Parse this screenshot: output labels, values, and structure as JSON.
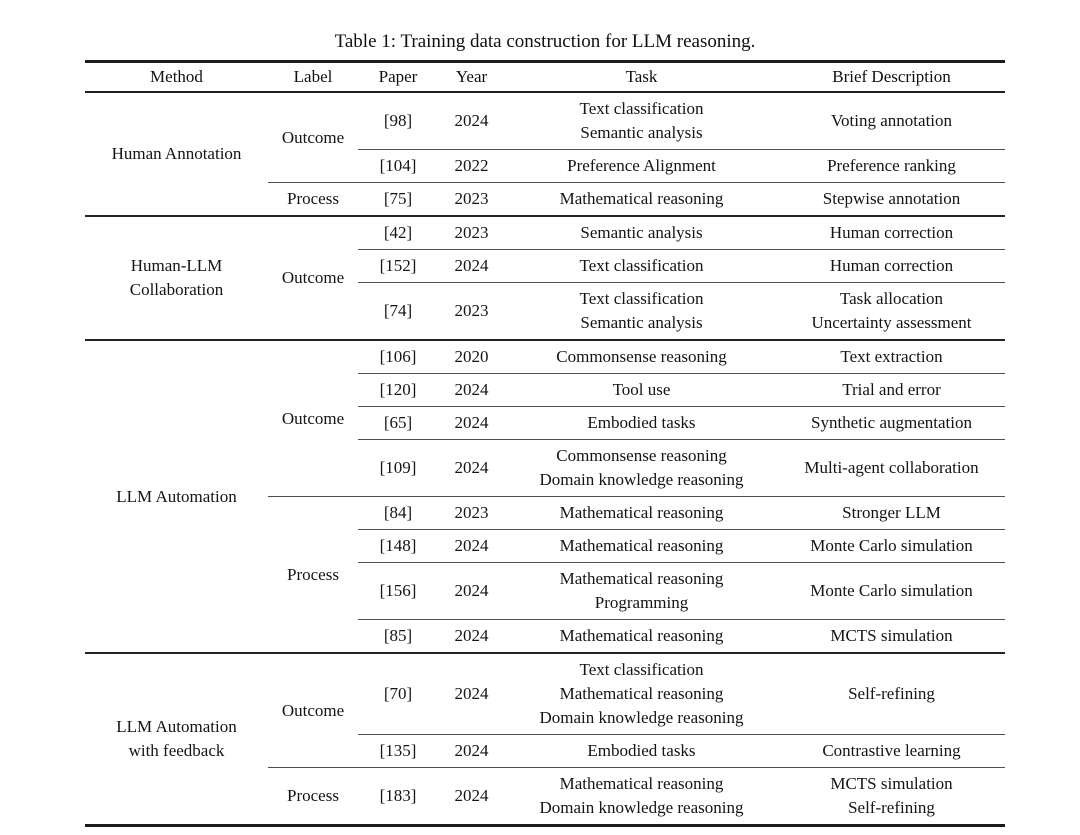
{
  "caption": "Table 1: Training data construction for LLM reasoning.",
  "columns": {
    "method": "Method",
    "label": "Label",
    "paper": "Paper",
    "year": "Year",
    "task": "Task",
    "description": "Brief Description"
  },
  "sections": [
    {
      "method": "Human Annotation",
      "groups": [
        {
          "label": "Outcome",
          "rows": [
            {
              "paper": "[98]",
              "year": "2024",
              "task": "Text classification\nSemantic analysis",
              "description": "Voting annotation"
            },
            {
              "paper": "[104]",
              "year": "2022",
              "task": "Preference Alignment",
              "description": "Preference ranking"
            }
          ]
        },
        {
          "label": "Process",
          "rows": [
            {
              "paper": "[75]",
              "year": "2023",
              "task": "Mathematical reasoning",
              "description": "Stepwise annotation"
            }
          ]
        }
      ]
    },
    {
      "method": "Human-LLM\nCollaboration",
      "groups": [
        {
          "label": "Outcome",
          "rows": [
            {
              "paper": "[42]",
              "year": "2023",
              "task": "Semantic analysis",
              "description": "Human correction"
            },
            {
              "paper": "[152]",
              "year": "2024",
              "task": "Text classification",
              "description": "Human correction"
            },
            {
              "paper": "[74]",
              "year": "2023",
              "task": "Text classification\nSemantic analysis",
              "description": "Task allocation\nUncertainty assessment"
            }
          ]
        }
      ]
    },
    {
      "method": "LLM Automation",
      "groups": [
        {
          "label": "Outcome",
          "rows": [
            {
              "paper": "[106]",
              "year": "2020",
              "task": "Commonsense reasoning",
              "description": "Text extraction"
            },
            {
              "paper": "[120]",
              "year": "2024",
              "task": "Tool use",
              "description": "Trial and error"
            },
            {
              "paper": "[65]",
              "year": "2024",
              "task": "Embodied tasks",
              "description": "Synthetic augmentation"
            },
            {
              "paper": "[109]",
              "year": "2024",
              "task": "Commonsense reasoning\nDomain knowledge reasoning",
              "description": "Multi-agent collaboration"
            }
          ]
        },
        {
          "label": "Process",
          "rows": [
            {
              "paper": "[84]",
              "year": "2023",
              "task": "Mathematical reasoning",
              "description": "Stronger LLM"
            },
            {
              "paper": "[148]",
              "year": "2024",
              "task": "Mathematical reasoning",
              "description": "Monte Carlo simulation"
            },
            {
              "paper": "[156]",
              "year": "2024",
              "task": "Mathematical reasoning\nProgramming",
              "description": "Monte Carlo simulation"
            },
            {
              "paper": "[85]",
              "year": "2024",
              "task": "Mathematical reasoning",
              "description": "MCTS simulation"
            }
          ]
        }
      ]
    },
    {
      "method": "LLM Automation\nwith feedback",
      "groups": [
        {
          "label": "Outcome",
          "rows": [
            {
              "paper": "[70]",
              "year": "2024",
              "task": "Text classification\nMathematical reasoning\nDomain knowledge reasoning",
              "description": "Self-refining"
            },
            {
              "paper": "[135]",
              "year": "2024",
              "task": "Embodied tasks",
              "description": "Contrastive learning"
            }
          ]
        },
        {
          "label": "Process",
          "rows": [
            {
              "paper": "[183]",
              "year": "2024",
              "task": "Mathematical reasoning\nDomain knowledge reasoning",
              "description": "MCTS simulation\nSelf-refining"
            }
          ]
        }
      ]
    }
  ]
}
